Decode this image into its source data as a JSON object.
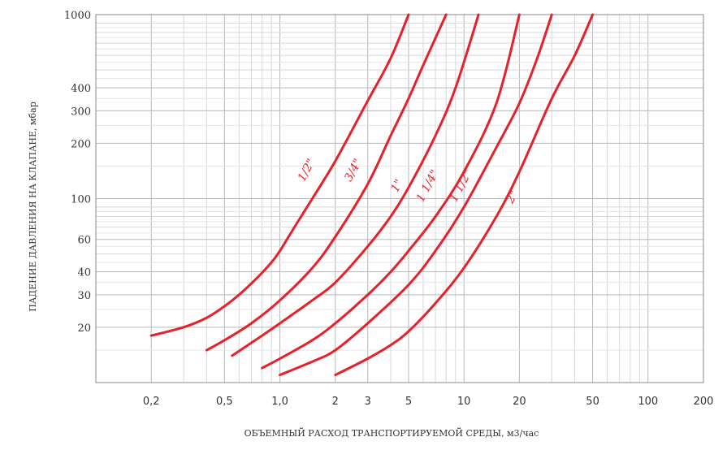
{
  "chart_data": {
    "type": "line",
    "title": "",
    "xlabel": "ОБЪЕМНЫЙ РАСХОД ТРАНСПОРТИРУЕМОЙ СРЕДЫ, м3/час",
    "ylabel": "ПАДЕНИЕ ДАВЛЕНИЯ НА КЛАПАНЕ, мбар",
    "x_scale": "log",
    "y_scale": "log",
    "xlim": [
      0.1,
      200
    ],
    "ylim": [
      10,
      1000
    ],
    "x_ticks": [
      {
        "value": 0.2,
        "label": "0,2"
      },
      {
        "value": 0.5,
        "label": "0,5"
      },
      {
        "value": 1,
        "label": "1,0"
      },
      {
        "value": 2,
        "label": "2"
      },
      {
        "value": 3,
        "label": "3"
      },
      {
        "value": 5,
        "label": "5"
      },
      {
        "value": 10,
        "label": "10"
      },
      {
        "value": 20,
        "label": "20"
      },
      {
        "value": 50,
        "label": "50"
      },
      {
        "value": 100,
        "label": "100"
      },
      {
        "value": 200,
        "label": "200"
      }
    ],
    "y_ticks": [
      {
        "value": 20,
        "label": "20"
      },
      {
        "value": 30,
        "label": "30"
      },
      {
        "value": 40,
        "label": "40"
      },
      {
        "value": 60,
        "label": "60"
      },
      {
        "value": 100,
        "label": "100"
      },
      {
        "value": 200,
        "label": "200"
      },
      {
        "value": 300,
        "label": "300"
      },
      {
        "value": 400,
        "label": "400"
      },
      {
        "value": 1000,
        "label": "1000"
      }
    ],
    "grid": true,
    "line_color": "#e8202a",
    "series": [
      {
        "name": "1/2\"",
        "label_at": [
          1.45,
          140
        ],
        "x": [
          0.2,
          0.3,
          0.4,
          0.5,
          0.6,
          0.75,
          0.9,
          1.0,
          1.2,
          1.5,
          2.0,
          3.0,
          4.0,
          5.0
        ],
        "y": [
          18,
          20,
          22.5,
          26,
          30,
          37,
          45,
          52,
          70,
          100,
          160,
          340,
          580,
          1000
        ]
      },
      {
        "name": "3/4\"",
        "label_at": [
          2.6,
          140
        ],
        "x": [
          0.4,
          0.5,
          0.7,
          1.0,
          1.5,
          2.0,
          3.0,
          4.0,
          5.0,
          6.0,
          8.0
        ],
        "y": [
          15,
          17,
          21,
          28,
          42,
          62,
          120,
          220,
          350,
          530,
          1000
        ]
      },
      {
        "name": "1\"",
        "label_at": [
          4.5,
          115
        ],
        "x": [
          0.55,
          0.8,
          1.0,
          1.5,
          2.0,
          3.0,
          4.0,
          5.0,
          7.0,
          9.0,
          12.0
        ],
        "y": [
          14,
          18,
          21,
          28,
          35,
          55,
          80,
          115,
          220,
          400,
          1000
        ]
      },
      {
        "name": "1 1/4\"",
        "label_at": [
          6.6,
          115
        ],
        "x": [
          0.8,
          1.0,
          1.5,
          2.0,
          3.0,
          4.0,
          5.0,
          7.0,
          10.0,
          15.0,
          20.0
        ],
        "y": [
          12,
          13.5,
          17,
          21,
          30,
          40,
          52,
          80,
          140,
          330,
          1000
        ]
      },
      {
        "name": "1 1/2\"",
        "label_at": [
          10,
          115
        ],
        "x": [
          1.0,
          1.5,
          2.0,
          3.0,
          5.0,
          7.0,
          10.0,
          15.0,
          20.0,
          25.0,
          30.0
        ],
        "y": [
          11,
          13,
          15,
          21,
          34,
          52,
          90,
          190,
          330,
          580,
          1000
        ]
      },
      {
        "name": "2\"",
        "label_at": [
          19,
          100
        ],
        "x": [
          2.0,
          3.0,
          4.0,
          5.0,
          7.0,
          10.0,
          15.0,
          20.0,
          30.0,
          40.0,
          50.0
        ],
        "y": [
          11,
          13.5,
          16,
          19,
          27,
          42,
          80,
          140,
          350,
          600,
          1000
        ]
      }
    ]
  }
}
